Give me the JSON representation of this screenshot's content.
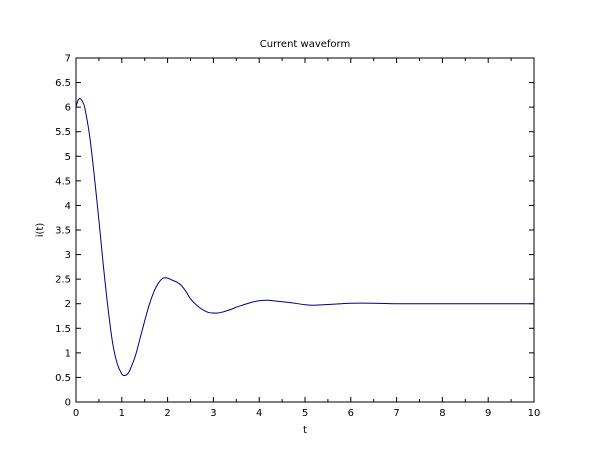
{
  "chart_data": {
    "type": "line",
    "title": "Current waveform",
    "xlabel": "t",
    "ylabel": "i(t)",
    "xlim": [
      0,
      10
    ],
    "ylim": [
      0,
      7
    ],
    "x_ticks": [
      "0",
      "1",
      "2",
      "3",
      "4",
      "5",
      "6",
      "7",
      "8",
      "9",
      "10"
    ],
    "y_ticks": [
      "0",
      "0.5",
      "1",
      "1.5",
      "2",
      "2.5",
      "3",
      "3.5",
      "4",
      "4.5",
      "5",
      "5.5",
      "6",
      "6.5",
      "7"
    ],
    "grid": false,
    "line_color": "#00007f",
    "series": [
      {
        "x": [
          0,
          0.05,
          0.1,
          0.15,
          0.2,
          0.3,
          0.4,
          0.5,
          0.6,
          0.7,
          0.8,
          0.9,
          1.0,
          1.05,
          1.1,
          1.15,
          1.2,
          1.3,
          1.4,
          1.5,
          1.6,
          1.7,
          1.8,
          1.9,
          2.0,
          2.1,
          2.2,
          2.3,
          2.4,
          2.5,
          2.6,
          2.7,
          2.8,
          2.9,
          3.0,
          3.1,
          3.2,
          3.3,
          3.4,
          3.5,
          3.6,
          3.8,
          4.0,
          4.2,
          4.3,
          4.5,
          4.7,
          5.0,
          5.2,
          5.4,
          5.6,
          5.8,
          6.0,
          6.5,
          7.0,
          7.5,
          8.0,
          9.0,
          10.0
        ],
        "y": [
          6.0,
          6.15,
          6.17,
          6.1,
          5.95,
          5.4,
          4.6,
          3.7,
          2.75,
          1.9,
          1.2,
          0.78,
          0.57,
          0.54,
          0.55,
          0.6,
          0.7,
          0.95,
          1.3,
          1.65,
          1.98,
          2.24,
          2.42,
          2.52,
          2.52,
          2.48,
          2.44,
          2.37,
          2.25,
          2.1,
          2.0,
          1.92,
          1.86,
          1.82,
          1.81,
          1.81,
          1.83,
          1.86,
          1.89,
          1.93,
          1.96,
          2.02,
          2.06,
          2.07,
          2.06,
          2.04,
          2.02,
          1.98,
          1.97,
          1.98,
          1.99,
          2.0,
          2.01,
          2.01,
          2.0,
          2.0,
          2.0,
          2.0,
          2.0
        ]
      }
    ]
  }
}
